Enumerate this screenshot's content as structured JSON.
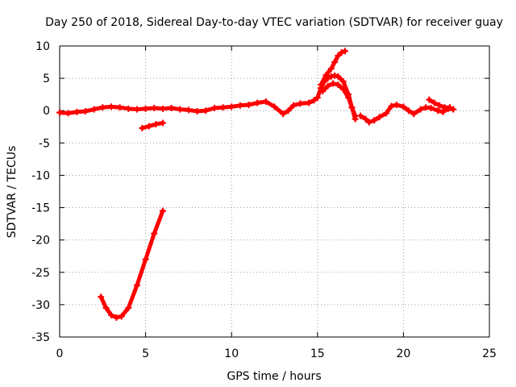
{
  "chart_data": {
    "type": "scatter",
    "title": "Day 250 of 2018, Sidereal Day-to-day VTEC variation (SDTVAR) for receiver guay",
    "xlabel": "GPS time / hours",
    "ylabel": "SDTVAR / TECUs",
    "xlim": [
      0,
      25
    ],
    "ylim": [
      -35,
      10
    ],
    "xticks": [
      0,
      5,
      10,
      15,
      20,
      25
    ],
    "yticks": [
      -35,
      -30,
      -25,
      -20,
      -15,
      -10,
      -5,
      0,
      5,
      10
    ],
    "grid": true,
    "marker_color": "#ff0000",
    "series": [
      {
        "name": "main",
        "x": [
          0.0,
          0.5,
          1.0,
          1.5,
          2.0,
          2.5,
          3.0,
          3.5,
          4.0,
          4.5,
          5.0,
          5.5,
          6.0,
          6.5,
          7.0,
          7.5,
          8.0,
          8.5,
          9.0,
          9.5,
          10.0,
          10.5,
          11.0,
          11.5,
          12.0,
          12.5,
          13.0,
          13.3,
          13.6,
          14.0,
          14.5,
          14.8,
          15.0,
          15.2,
          15.4,
          15.6,
          15.8,
          16.0,
          16.2,
          16.5,
          16.8,
          17.0,
          17.2
        ],
        "y": [
          -0.3,
          -0.4,
          -0.2,
          -0.1,
          0.2,
          0.5,
          0.6,
          0.5,
          0.3,
          0.2,
          0.3,
          0.4,
          0.3,
          0.4,
          0.2,
          0.1,
          -0.1,
          0.0,
          0.4,
          0.5,
          0.6,
          0.8,
          0.9,
          1.2,
          1.4,
          0.6,
          -0.5,
          0.0,
          0.8,
          1.1,
          1.2,
          1.6,
          2.0,
          3.5,
          4.5,
          5.0,
          5.3,
          5.4,
          5.3,
          4.5,
          2.5,
          0.5,
          -1.3
        ]
      },
      {
        "name": "branch-high",
        "x": [
          15.2,
          15.5,
          15.8,
          16.0,
          16.2,
          16.4,
          16.6
        ],
        "y": [
          4.0,
          5.5,
          6.5,
          7.5,
          8.5,
          9.0,
          9.2
        ]
      },
      {
        "name": "branch-low",
        "x": [
          15.3,
          15.6,
          15.9,
          16.2,
          16.5,
          16.8,
          17.0,
          17.2
        ],
        "y": [
          3.0,
          3.8,
          4.2,
          4.0,
          3.3,
          2.0,
          0.5,
          -0.8
        ]
      },
      {
        "name": "late-segment",
        "x": [
          17.5,
          17.8,
          18.0,
          18.3,
          18.6,
          19.0,
          19.3,
          19.6,
          20.0,
          20.3,
          20.6,
          21.0,
          21.3,
          21.6,
          22.0,
          22.3,
          22.6,
          22.9
        ],
        "y": [
          -0.8,
          -1.3,
          -1.8,
          -1.5,
          -1.0,
          -0.4,
          0.7,
          0.9,
          0.6,
          0.0,
          -0.5,
          0.2,
          0.5,
          0.4,
          0.0,
          -0.2,
          0.3,
          0.2
        ]
      },
      {
        "name": "late-high",
        "x": [
          21.5,
          21.8,
          22.1,
          22.4,
          22.7
        ],
        "y": [
          1.7,
          1.2,
          0.8,
          0.5,
          0.5
        ]
      },
      {
        "name": "short-negative",
        "x": [
          4.8,
          5.2,
          5.6,
          6.0
        ],
        "y": [
          -2.7,
          -2.4,
          -2.1,
          -1.9
        ]
      },
      {
        "name": "deep-dip",
        "x": [
          2.4,
          2.7,
          3.0,
          3.3,
          3.6,
          4.0,
          4.5,
          5.0,
          5.5,
          6.0
        ],
        "y": [
          -28.8,
          -30.5,
          -31.6,
          -32.0,
          -31.8,
          -30.5,
          -27.0,
          -23.0,
          -19.0,
          -15.5
        ]
      }
    ]
  }
}
